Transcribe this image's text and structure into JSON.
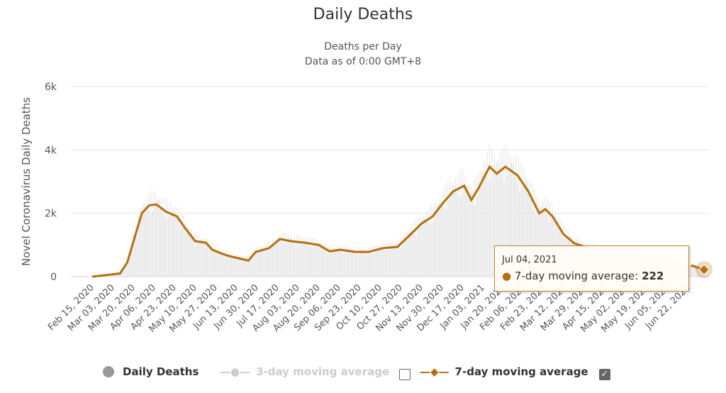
{
  "chart_data": {
    "type": "line",
    "title": "Daily Deaths",
    "subtitle": [
      "Deaths per Day",
      "Data as of 0:00 GMT+8"
    ],
    "ylabel": "Novel Coronavirus Daily Deaths",
    "ylim": [
      0,
      6000
    ],
    "yticks": [
      "0",
      "2k",
      "4k",
      "6k"
    ],
    "ytick_values": [
      0,
      2000,
      4000,
      6000
    ],
    "xlim": [
      "2020-02-15",
      "2021-07-04"
    ],
    "xticks": [
      "Feb 15, 2020",
      "Mar 03, 2020",
      "Mar 20, 2020",
      "Apr 06, 2020",
      "Apr 23, 2020",
      "May 10, 2020",
      "May 27, 2020",
      "Jun 13, 2020",
      "Jun 30, 2020",
      "Jul 17, 2020",
      "Aug 03, 2020",
      "Aug 20, 2020",
      "Sep 06, 2020",
      "Sep 23, 2020",
      "Oct 10, 2020",
      "Oct 27, 2020",
      "Nov 13, 2020",
      "Nov 30, 2020",
      "Dec 17, 2020",
      "Jan 03, 2021",
      "Jan 20, 2021",
      "Feb 06, 2021",
      "Feb 23, 2021",
      "Mar 12, 2021",
      "Mar 29, 2021",
      "Apr 15, 2021",
      "May 02, 2021",
      "May 19, 2021",
      "Jun 05, 2021",
      "Jun 22, 2021"
    ],
    "grid": true,
    "legend_placement": "bottom",
    "series": [
      {
        "name": "Daily Deaths",
        "type": "bar",
        "color": "#e6e6e6",
        "visible": true
      },
      {
        "name": "3-day moving average",
        "type": "line",
        "color": "#cccccc",
        "visible": false,
        "checked": false
      },
      {
        "name": "7-day moving average",
        "type": "line",
        "color": "#b5700e",
        "visible": true,
        "checked": true,
        "x": [
          "2020-02-15",
          "2020-03-09",
          "2020-03-15",
          "2020-03-21",
          "2020-03-27",
          "2020-04-02",
          "2020-04-08",
          "2020-04-16",
          "2020-04-25",
          "2020-05-01",
          "2020-05-10",
          "2020-05-19",
          "2020-05-24",
          "2020-06-05",
          "2020-06-17",
          "2020-06-23",
          "2020-06-29",
          "2020-07-10",
          "2020-07-19",
          "2020-07-28",
          "2020-08-09",
          "2020-08-20",
          "2020-08-29",
          "2020-09-07",
          "2020-09-19",
          "2020-09-30",
          "2020-10-12",
          "2020-10-24",
          "2020-11-04",
          "2020-11-13",
          "2020-11-22",
          "2020-12-01",
          "2020-12-09",
          "2020-12-18",
          "2020-12-24",
          "2020-12-30",
          "2021-01-08",
          "2021-01-14",
          "2021-01-21",
          "2021-01-31",
          "2021-02-09",
          "2021-02-18",
          "2021-02-23",
          "2021-03-01",
          "2021-03-10",
          "2021-03-19",
          "2021-03-31",
          "2021-04-11",
          "2021-04-23",
          "2021-05-11",
          "2021-05-28",
          "2021-06-15",
          "2021-07-04"
        ],
        "y": [
          0,
          100,
          450,
          1230,
          2000,
          2250,
          2280,
          2050,
          1900,
          1570,
          1120,
          1070,
          850,
          670,
          560,
          510,
          780,
          900,
          1190,
          1120,
          1070,
          1000,
          800,
          850,
          780,
          780,
          900,
          940,
          1340,
          1680,
          1900,
          2350,
          2690,
          2870,
          2420,
          2800,
          3470,
          3250,
          3470,
          3200,
          2690,
          2000,
          2130,
          1900,
          1340,
          1050,
          900,
          780,
          780,
          670,
          510,
          400,
          222
        ]
      }
    ]
  },
  "tooltip": {
    "date": "Jul 04, 2021",
    "series": "7-day moving average",
    "value": "222"
  },
  "legend": {
    "items": [
      "Daily Deaths",
      "3-day moving average",
      "7-day moving average"
    ]
  }
}
